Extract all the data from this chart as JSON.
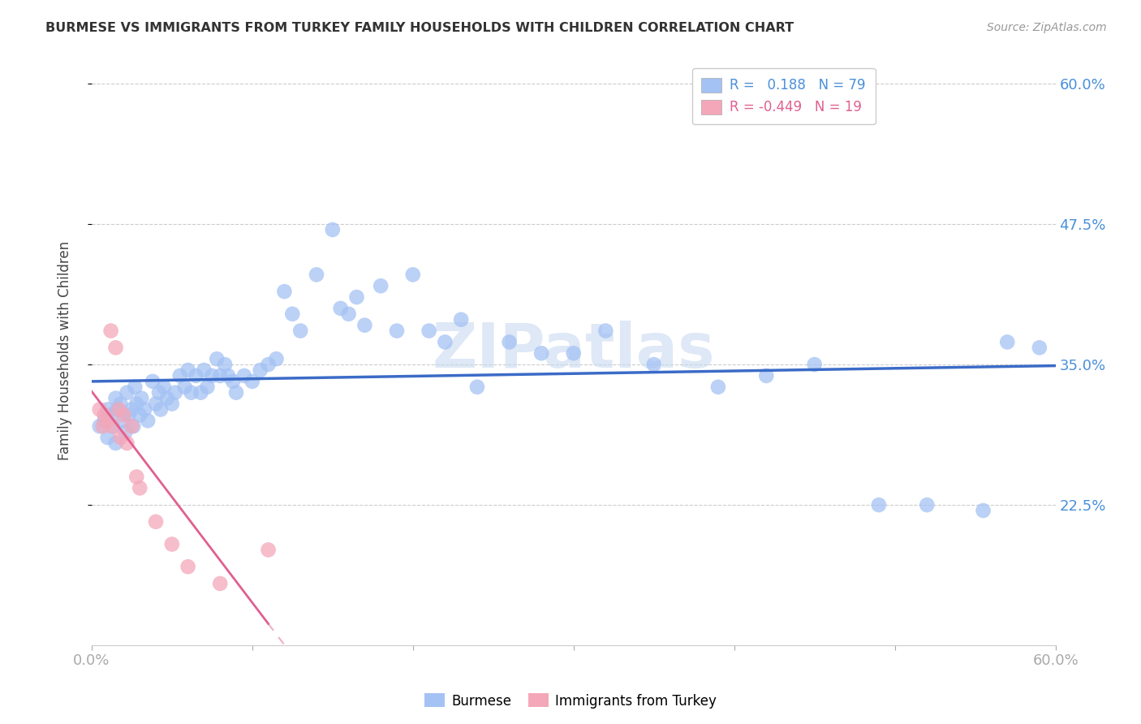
{
  "title": "BURMESE VS IMMIGRANTS FROM TURKEY FAMILY HOUSEHOLDS WITH CHILDREN CORRELATION CHART",
  "source": "Source: ZipAtlas.com",
  "ylabel": "Family Households with Children",
  "xmin": 0.0,
  "xmax": 0.6,
  "ymin": 0.1,
  "ymax": 0.625,
  "yticks": [
    0.225,
    0.35,
    0.475,
    0.6
  ],
  "ytick_labels": [
    "22.5%",
    "35.0%",
    "47.5%",
    "60.0%"
  ],
  "burmese_R": 0.188,
  "burmese_N": 79,
  "turkey_R": -0.449,
  "turkey_N": 19,
  "blue_color": "#a4c2f4",
  "pink_color": "#f4a7b9",
  "blue_line_color": "#3b6bc7",
  "pink_line_color": "#e06090",
  "watermark": "ZIPatlas",
  "burmese_x": [
    0.005,
    0.008,
    0.01,
    0.01,
    0.012,
    0.013,
    0.015,
    0.015,
    0.016,
    0.018,
    0.02,
    0.021,
    0.022,
    0.023,
    0.025,
    0.026,
    0.027,
    0.028,
    0.03,
    0.031,
    0.033,
    0.035,
    0.038,
    0.04,
    0.042,
    0.043,
    0.045,
    0.047,
    0.05,
    0.052,
    0.055,
    0.058,
    0.06,
    0.062,
    0.065,
    0.068,
    0.07,
    0.072,
    0.075,
    0.078,
    0.08,
    0.083,
    0.085,
    0.088,
    0.09,
    0.095,
    0.1,
    0.105,
    0.11,
    0.115,
    0.12,
    0.125,
    0.13,
    0.14,
    0.15,
    0.155,
    0.16,
    0.165,
    0.17,
    0.18,
    0.19,
    0.2,
    0.21,
    0.22,
    0.23,
    0.24,
    0.26,
    0.28,
    0.3,
    0.32,
    0.35,
    0.39,
    0.42,
    0.45,
    0.49,
    0.52,
    0.555,
    0.57,
    0.59
  ],
  "burmese_y": [
    0.295,
    0.3,
    0.285,
    0.31,
    0.305,
    0.295,
    0.32,
    0.28,
    0.31,
    0.315,
    0.3,
    0.29,
    0.325,
    0.305,
    0.31,
    0.295,
    0.33,
    0.315,
    0.305,
    0.32,
    0.31,
    0.3,
    0.335,
    0.315,
    0.325,
    0.31,
    0.33,
    0.32,
    0.315,
    0.325,
    0.34,
    0.33,
    0.345,
    0.325,
    0.34,
    0.325,
    0.345,
    0.33,
    0.34,
    0.355,
    0.34,
    0.35,
    0.34,
    0.335,
    0.325,
    0.34,
    0.335,
    0.345,
    0.35,
    0.355,
    0.415,
    0.395,
    0.38,
    0.43,
    0.47,
    0.4,
    0.395,
    0.41,
    0.385,
    0.42,
    0.38,
    0.43,
    0.38,
    0.37,
    0.39,
    0.33,
    0.37,
    0.36,
    0.36,
    0.38,
    0.35,
    0.33,
    0.34,
    0.35,
    0.225,
    0.225,
    0.22,
    0.37,
    0.365
  ],
  "turkey_x": [
    0.005,
    0.007,
    0.008,
    0.01,
    0.012,
    0.013,
    0.015,
    0.017,
    0.018,
    0.02,
    0.022,
    0.025,
    0.028,
    0.03,
    0.04,
    0.05,
    0.06,
    0.08,
    0.11
  ],
  "turkey_y": [
    0.31,
    0.295,
    0.305,
    0.3,
    0.38,
    0.295,
    0.365,
    0.31,
    0.285,
    0.305,
    0.28,
    0.295,
    0.25,
    0.24,
    0.21,
    0.19,
    0.17,
    0.155,
    0.185
  ]
}
